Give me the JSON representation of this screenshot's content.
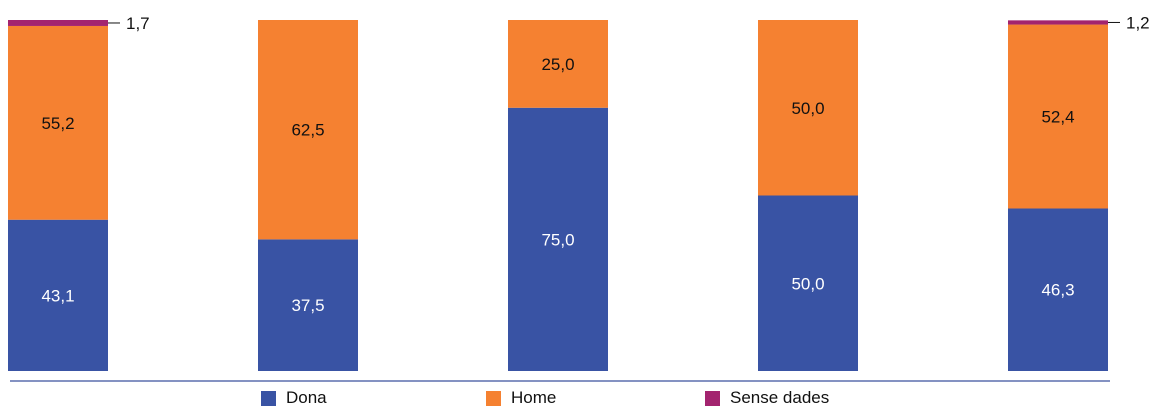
{
  "chart_data": {
    "type": "bar",
    "stacked": true,
    "normalized": true,
    "categories": [
      "",
      "",
      "",
      "",
      ""
    ],
    "series": [
      {
        "name": "Dona",
        "color": "#3953a4",
        "label_color": "#ffffff",
        "values": [
          43.1,
          37.5,
          75.0,
          50.0,
          46.3
        ],
        "labels": [
          "43,1",
          "37,5",
          "75,0",
          "50,0",
          "46,3"
        ]
      },
      {
        "name": "Home",
        "color": "#f58131",
        "label_color": "#111111",
        "values": [
          55.2,
          62.5,
          25.0,
          50.0,
          52.4
        ],
        "labels": [
          "55,2",
          "62,5",
          "25,0",
          "50,0",
          "52,4"
        ]
      },
      {
        "name": "Sense dades",
        "color": "#a3246f",
        "label_color": "#111111",
        "values": [
          1.7,
          0,
          0,
          0,
          1.2
        ],
        "labels": [
          "1,7",
          "",
          "",
          "",
          "1,2"
        ]
      }
    ],
    "ylim": [
      0,
      100
    ],
    "grid": false,
    "legend_position": "bottom",
    "baseline_color": "#5b6fae"
  },
  "legend": {
    "items": [
      {
        "label": "Dona",
        "color": "#3953a4"
      },
      {
        "label": "Home",
        "color": "#f58131"
      },
      {
        "label": "Sense dades",
        "color": "#a3246f"
      }
    ]
  }
}
